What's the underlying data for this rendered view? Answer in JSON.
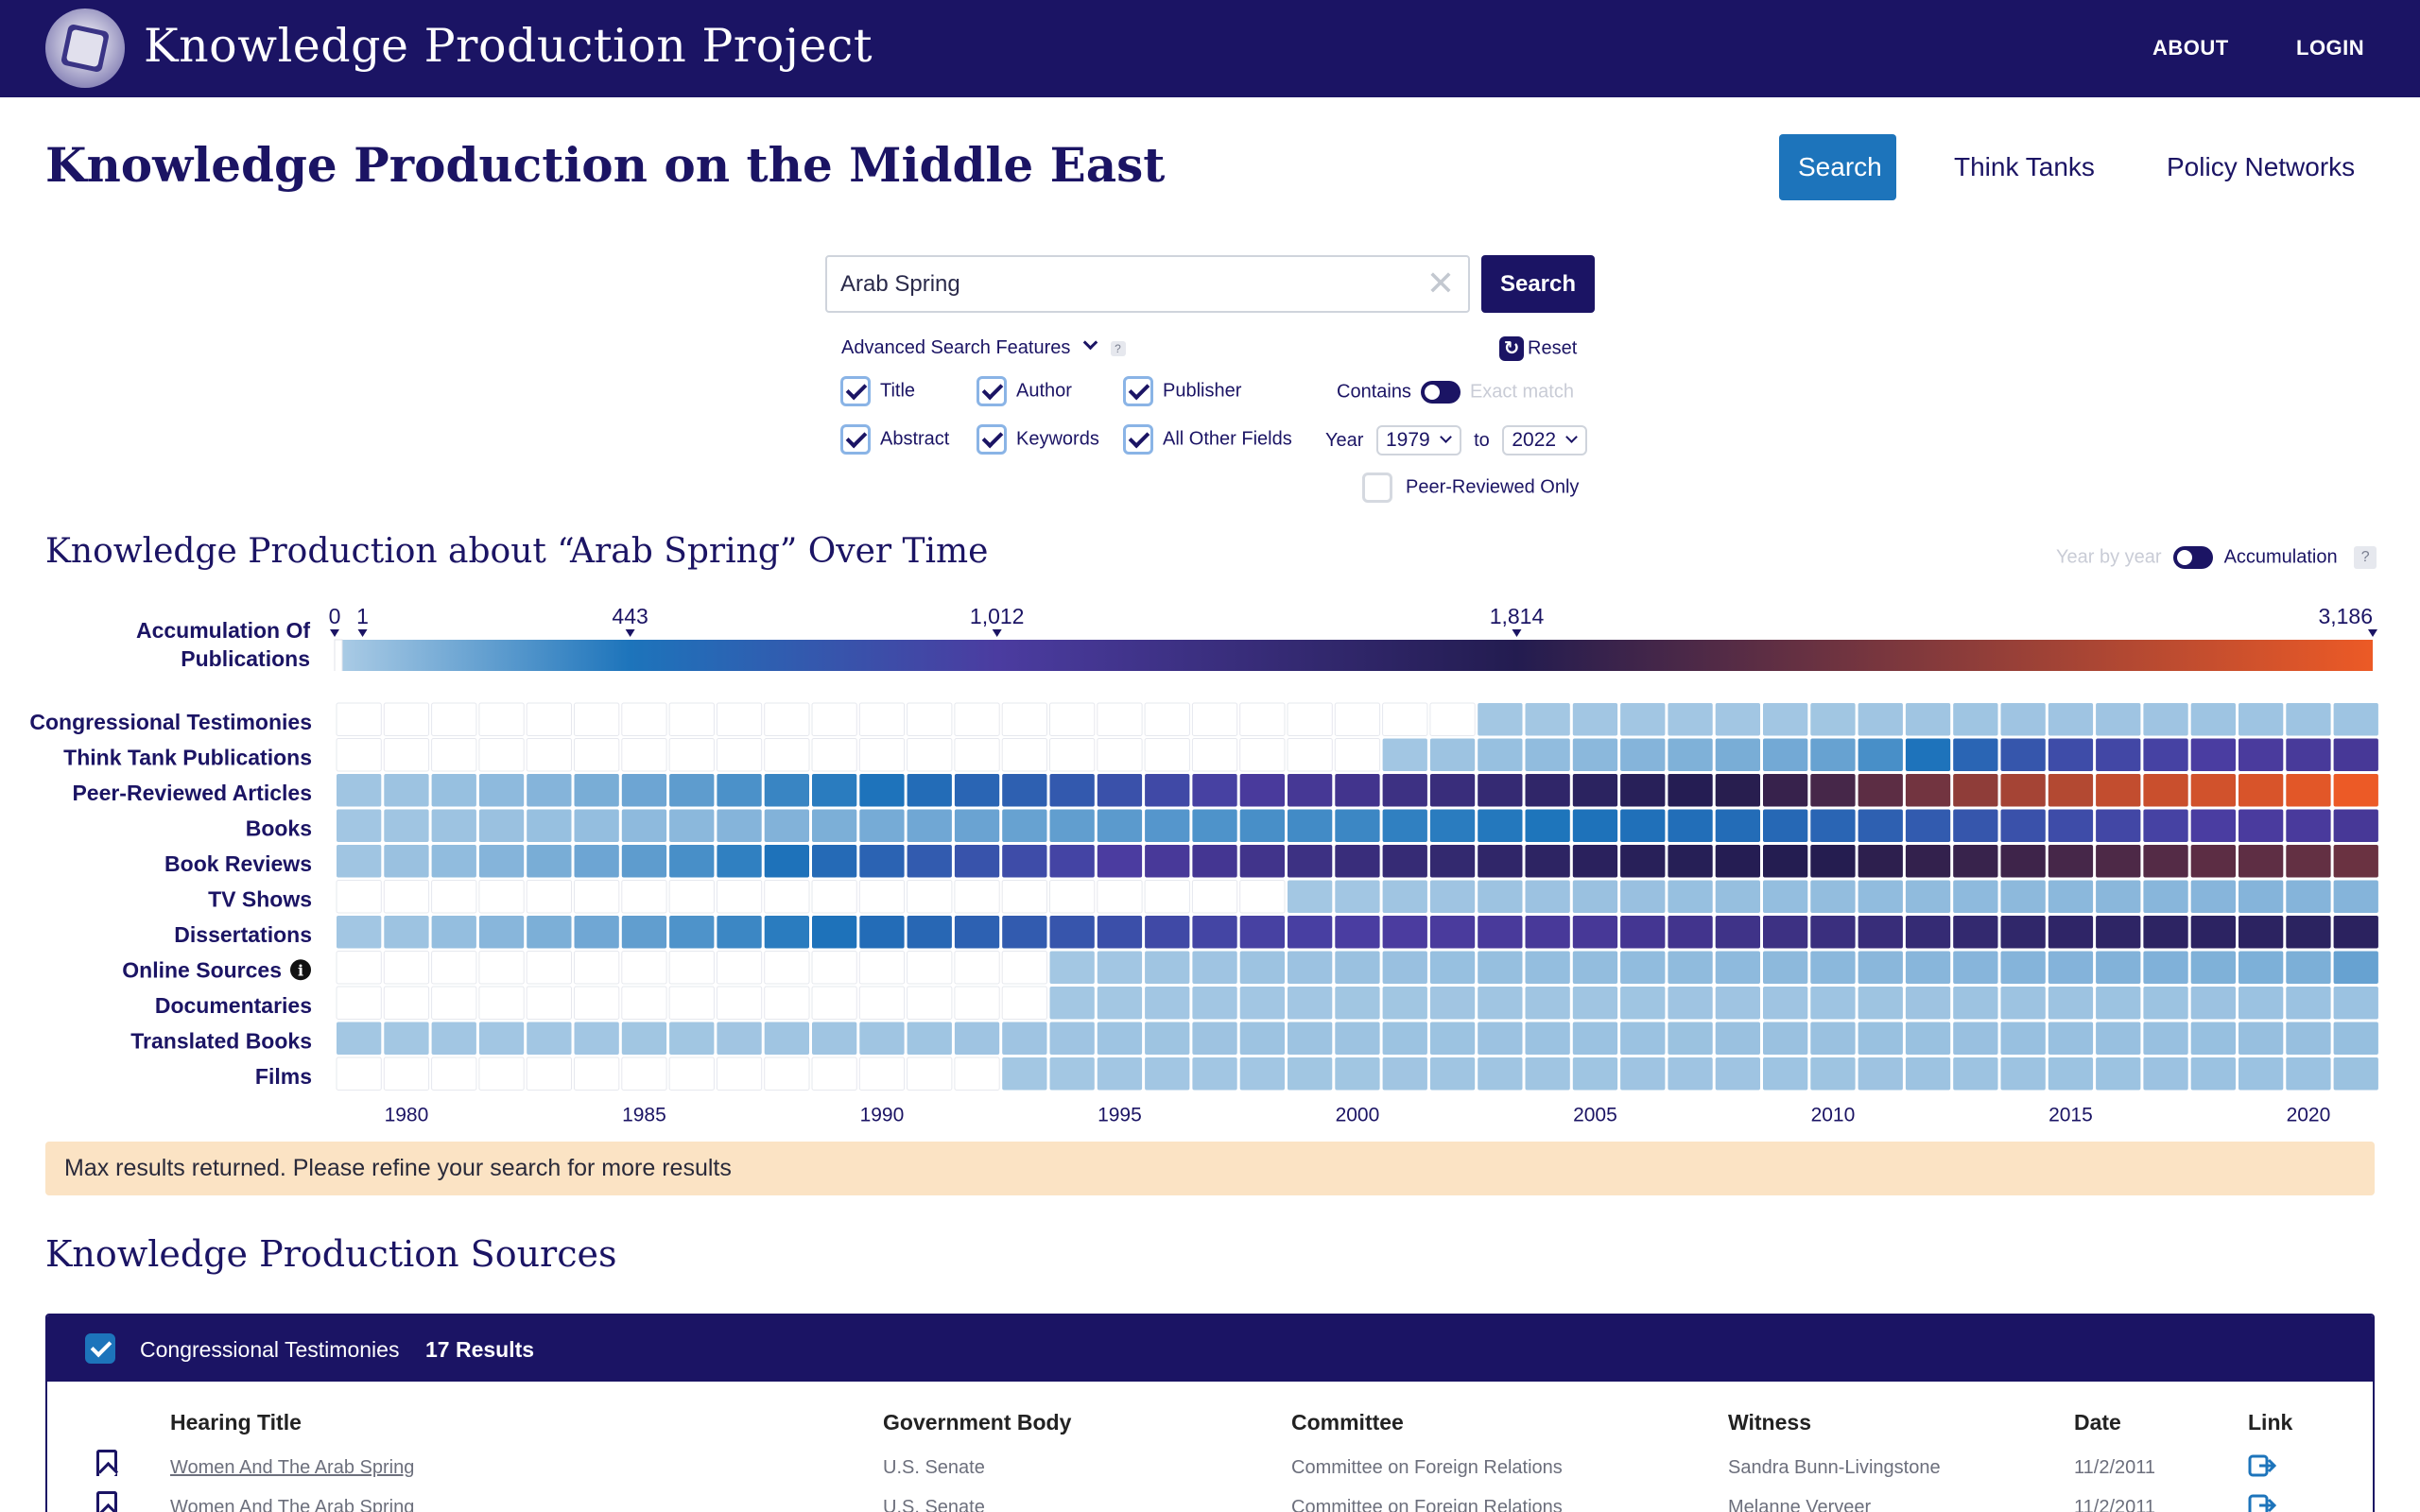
{
  "site": {
    "title": "Knowledge Production Project"
  },
  "nav": {
    "about": "ABOUT",
    "login": "LOGIN"
  },
  "page": {
    "title": "Knowledge Production on the Middle East"
  },
  "tabs": [
    {
      "label": "Search",
      "active": true
    },
    {
      "label": "Think Tanks",
      "active": false
    },
    {
      "label": "Policy Networks",
      "active": false
    }
  ],
  "search": {
    "value": "Arab Spring",
    "button": "Search",
    "clear": "✕",
    "advanced_label": "Advanced Search Features",
    "help": "?",
    "reset_label": "Reset",
    "fields": [
      {
        "label": "Title",
        "checked": true
      },
      {
        "label": "Author",
        "checked": true
      },
      {
        "label": "Publisher",
        "checked": true
      },
      {
        "label": "Abstract",
        "checked": true
      },
      {
        "label": "Keywords",
        "checked": true
      },
      {
        "label": "All Other Fields",
        "checked": true
      }
    ],
    "contains_label": "Contains",
    "exact_label": "Exact match",
    "year_label": "Year",
    "year_from": "1979",
    "to_label": "to",
    "year_to": "2022",
    "peer_reviewed_label": "Peer-Reviewed Only"
  },
  "chart": {
    "title": "Knowledge Production about “Arab Spring” Over Time",
    "mode_yby": "Year by year",
    "mode_acc": "Accumulation",
    "help": "?",
    "legend_label_1": "Accumulation Of",
    "legend_label_2": "Publications",
    "info_icon": "i"
  },
  "chart_data": {
    "type": "heatmap",
    "title": "Knowledge Production about “Arab Spring” Over Time",
    "x": [
      1979,
      1980,
      1981,
      1982,
      1983,
      1984,
      1985,
      1986,
      1987,
      1988,
      1989,
      1990,
      1991,
      1992,
      1993,
      1994,
      1995,
      1996,
      1997,
      1998,
      1999,
      2000,
      2001,
      2002,
      2003,
      2004,
      2005,
      2006,
      2007,
      2008,
      2009,
      2010,
      2011,
      2012,
      2013,
      2014,
      2015,
      2016,
      2017,
      2018,
      2019,
      2020,
      2021
    ],
    "x_ticks": [
      "1980",
      "1985",
      "1990",
      "1995",
      "2000",
      "2005",
      "2010",
      "2015",
      "2020"
    ],
    "x_tick_values": [
      1980,
      1985,
      1990,
      1995,
      2000,
      2005,
      2010,
      2015,
      2020
    ],
    "rows": [
      "Congressional Testimonies",
      "Think Tank Publications",
      "Peer-Reviewed Articles",
      "Books",
      "Book Reviews",
      "TV Shows",
      "Dissertations",
      "Online Sources",
      "Documentaries",
      "Translated Books",
      "Films"
    ],
    "legend_ticks": [
      "0",
      "1",
      "443",
      "1,012",
      "1,814",
      "3,186"
    ],
    "legend_tick_values": [
      0,
      1,
      443,
      1012,
      1814,
      3186
    ],
    "scale_max": 3186,
    "mode": "Accumulation",
    "series": [
      {
        "name": "Congressional Testimonies",
        "values": [
          0,
          0,
          0,
          0,
          0,
          0,
          0,
          0,
          0,
          0,
          0,
          0,
          0,
          0,
          0,
          0,
          0,
          0,
          0,
          0,
          0,
          0,
          0,
          0,
          1,
          2,
          3,
          4,
          5,
          5,
          6,
          8,
          10,
          12,
          13,
          14,
          15,
          16,
          16,
          17,
          17,
          17,
          17
        ]
      },
      {
        "name": "Think Tank Publications",
        "values": [
          0,
          0,
          0,
          0,
          0,
          0,
          0,
          0,
          0,
          0,
          0,
          0,
          0,
          0,
          0,
          0,
          0,
          0,
          0,
          0,
          0,
          0,
          5,
          20,
          40,
          60,
          80,
          100,
          120,
          140,
          160,
          200,
          300,
          450,
          600,
          750,
          850,
          900,
          950,
          1000,
          1040,
          1070,
          1100
        ]
      },
      {
        "name": "Peer-Reviewed Articles",
        "values": [
          10,
          20,
          40,
          70,
          100,
          140,
          180,
          230,
          290,
          350,
          400,
          450,
          520,
          600,
          650,
          720,
          800,
          880,
          960,
          1050,
          1120,
          1200,
          1300,
          1380,
          1460,
          1560,
          1650,
          1720,
          1780,
          1850,
          1950,
          2050,
          2200,
          2350,
          2550,
          2700,
          2800,
          2900,
          2950,
          3000,
          3050,
          3120,
          3186
        ]
      },
      {
        "name": "Books",
        "values": [
          5,
          10,
          20,
          30,
          40,
          50,
          70,
          80,
          100,
          110,
          130,
          150,
          170,
          190,
          200,
          220,
          240,
          260,
          280,
          300,
          320,
          340,
          380,
          400,
          420,
          440,
          460,
          480,
          500,
          520,
          560,
          600,
          650,
          700,
          750,
          800,
          850,
          900,
          950,
          1000,
          1030,
          1050,
          1100
        ]
      },
      {
        "name": "Book Reviews",
        "values": [
          10,
          30,
          60,
          100,
          140,
          180,
          230,
          300,
          380,
          460,
          540,
          620,
          700,
          780,
          850,
          930,
          1010,
          1080,
          1150,
          1220,
          1300,
          1380,
          1440,
          1500,
          1560,
          1620,
          1680,
          1720,
          1750,
          1780,
          1800,
          1830,
          1880,
          1920,
          1960,
          2000,
          2050,
          2100,
          2150,
          2200,
          2220,
          2250,
          2300
        ]
      },
      {
        "name": "TV Shows",
        "values": [
          0,
          0,
          0,
          0,
          0,
          0,
          0,
          0,
          0,
          0,
          0,
          0,
          0,
          0,
          0,
          0,
          0,
          0,
          0,
          0,
          1,
          5,
          10,
          15,
          20,
          25,
          30,
          35,
          40,
          45,
          50,
          55,
          60,
          65,
          70,
          75,
          80,
          85,
          90,
          95,
          100,
          100,
          100
        ]
      },
      {
        "name": "Dissertations",
        "values": [
          5,
          20,
          50,
          90,
          130,
          170,
          220,
          280,
          340,
          400,
          460,
          520,
          580,
          640,
          700,
          760,
          820,
          880,
          920,
          960,
          980,
          1000,
          1020,
          1040,
          1060,
          1080,
          1100,
          1150,
          1200,
          1250,
          1300,
          1350,
          1400,
          1450,
          1500,
          1550,
          1580,
          1600,
          1620,
          1630,
          1640,
          1650,
          1660
        ]
      },
      {
        "name": "Online Sources",
        "values": [
          0,
          0,
          0,
          0,
          0,
          0,
          0,
          0,
          0,
          0,
          0,
          0,
          0,
          0,
          0,
          2,
          5,
          10,
          15,
          20,
          25,
          30,
          35,
          40,
          45,
          50,
          55,
          60,
          65,
          70,
          75,
          80,
          85,
          90,
          95,
          100,
          105,
          110,
          115,
          120,
          125,
          130,
          200
        ]
      },
      {
        "name": "Documentaries",
        "values": [
          0,
          0,
          0,
          0,
          0,
          0,
          0,
          0,
          0,
          0,
          0,
          0,
          0,
          0,
          0,
          1,
          2,
          3,
          4,
          5,
          6,
          7,
          8,
          9,
          10,
          11,
          12,
          13,
          14,
          15,
          16,
          17,
          18,
          19,
          20,
          21,
          22,
          23,
          24,
          25,
          26,
          27,
          28
        ]
      },
      {
        "name": "Translated Books",
        "values": [
          1,
          2,
          3,
          4,
          5,
          6,
          7,
          8,
          9,
          10,
          11,
          12,
          13,
          14,
          15,
          16,
          17,
          18,
          19,
          20,
          21,
          22,
          23,
          24,
          25,
          26,
          27,
          28,
          29,
          30,
          31,
          32,
          33,
          34,
          35,
          36,
          37,
          38,
          39,
          40,
          41,
          42,
          43
        ]
      },
      {
        "name": "Films",
        "values": [
          0,
          0,
          0,
          0,
          0,
          0,
          0,
          0,
          0,
          0,
          0,
          0,
          0,
          0,
          1,
          2,
          3,
          4,
          5,
          6,
          7,
          8,
          9,
          10,
          11,
          12,
          13,
          14,
          15,
          16,
          17,
          18,
          19,
          20,
          21,
          22,
          23,
          24,
          25,
          26,
          27,
          28,
          29
        ]
      }
    ]
  },
  "banner": {
    "text": "Max results returned. Please refine your search for more results"
  },
  "sources": {
    "title": "Knowledge Production Sources",
    "group_label": "Congressional Testimonies",
    "group_count": "17 Results",
    "columns": [
      "Hearing Title",
      "Government Body",
      "Committee",
      "Witness",
      "Date",
      "Link"
    ],
    "rows": [
      {
        "title": "Women And The Arab Spring",
        "body": "U.S. Senate",
        "committee": "Committee on Foreign Relations",
        "witness": "Sandra Bunn-Livingstone",
        "date": "11/2/2011"
      },
      {
        "title": "Women And The Arab Spring",
        "body": "U.S. Senate",
        "committee": "Committee on Foreign Relations",
        "witness": "Melanne Verveer",
        "date": "11/2/2011"
      }
    ]
  },
  "colors": {
    "navy": "#1b1464",
    "accent": "#1d74bb",
    "banner": "#fbe3c4"
  }
}
